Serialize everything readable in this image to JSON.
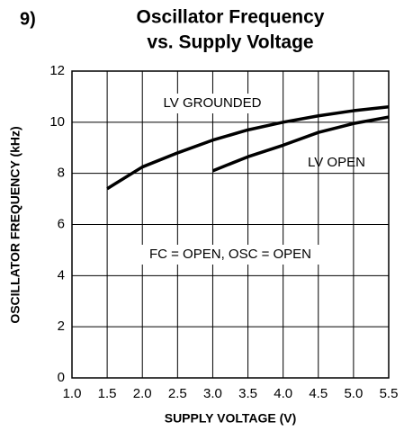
{
  "chart_data": {
    "type": "line",
    "figure_label": "9)",
    "title": "Oscillator Frequency",
    "subtitle": "vs. Supply Voltage",
    "x_label": "SUPPLY VOLTAGE (V)",
    "y_label": "OSCILLATOR FREQUENCY (kHz)",
    "x": [
      1.5,
      2.0,
      2.5,
      3.0,
      3.5,
      4.0,
      4.5,
      5.0,
      5.5
    ],
    "series": [
      {
        "name": "LV GROUNDED",
        "color": "#000000",
        "values": [
          7.4,
          8.25,
          8.8,
          9.3,
          9.7,
          10.0,
          10.25,
          10.45,
          10.6
        ]
      },
      {
        "name": "LV OPEN",
        "color": "#000000",
        "values": [
          null,
          null,
          null,
          8.1,
          8.65,
          9.1,
          9.6,
          9.95,
          10.2
        ]
      }
    ],
    "annotations": [
      "FC = OPEN, OSC = OPEN"
    ],
    "xlim": [
      1.0,
      5.5
    ],
    "xticks": [
      {
        "value": 1.0,
        "label": "1.0"
      },
      {
        "value": 1.5,
        "label": "1.5"
      },
      {
        "value": 2.0,
        "label": "2.0"
      },
      {
        "value": 2.5,
        "label": "2.5"
      },
      {
        "value": 3.0,
        "label": "3.0"
      },
      {
        "value": 3.5,
        "label": "3.5"
      },
      {
        "value": 4.0,
        "label": "4.0"
      },
      {
        "value": 4.5,
        "label": "4.5"
      },
      {
        "value": 5.0,
        "label": "5.0"
      },
      {
        "value": 5.5,
        "label": "5.5"
      }
    ],
    "ylim": [
      0,
      12
    ],
    "yticks": [
      0,
      2,
      4,
      6,
      8,
      10,
      12
    ],
    "grid": true
  }
}
